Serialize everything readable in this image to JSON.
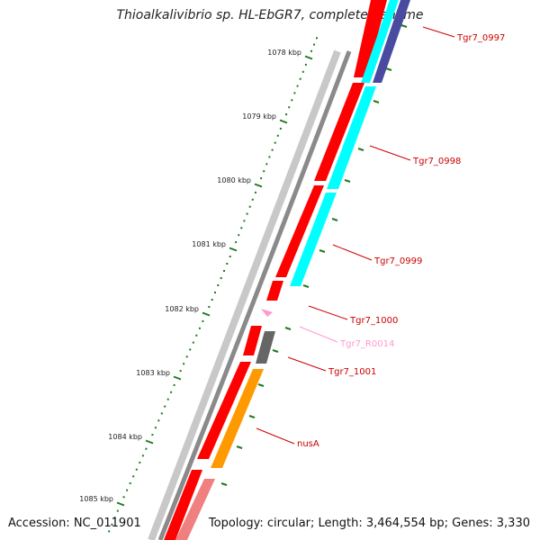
{
  "title": "Thioalkalivibrio sp. HL-EbGR7, complete genome",
  "footer": {
    "accession": "Accession: NC_011901",
    "summary": "Topology: circular; Length: 3,464,554 bp; Genes: 3,330"
  },
  "colors": {
    "backbone": "#8a8a8a",
    "cds": "#ff0000",
    "label": "#cc0000",
    "trna": "#ff99cc",
    "ticks": "#1f7a1f",
    "cyan": "#00ffff",
    "navy": "#4a4aa0",
    "gray": "#666666",
    "orange": "#ff9900",
    "pink": "#f08080"
  },
  "scale": {
    "unit": "kbp",
    "ticks": [
      "1078 kbp",
      "1079 kbp",
      "1080 kbp",
      "1081 kbp",
      "1082 kbp",
      "1083 kbp",
      "1084 kbp",
      "1085 kbp"
    ]
  },
  "features": [
    {
      "label": "Tgr7_0997",
      "color": "label"
    },
    {
      "label": "Tgr7_0998",
      "color": "label"
    },
    {
      "label": "Tgr7_0999",
      "color": "label"
    },
    {
      "label": "Tgr7_1000",
      "color": "label"
    },
    {
      "label": "Tgr7_R0014",
      "color": "trna"
    },
    {
      "label": "Tgr7_1001",
      "color": "label"
    },
    {
      "label": "nusA",
      "color": "label"
    }
  ]
}
